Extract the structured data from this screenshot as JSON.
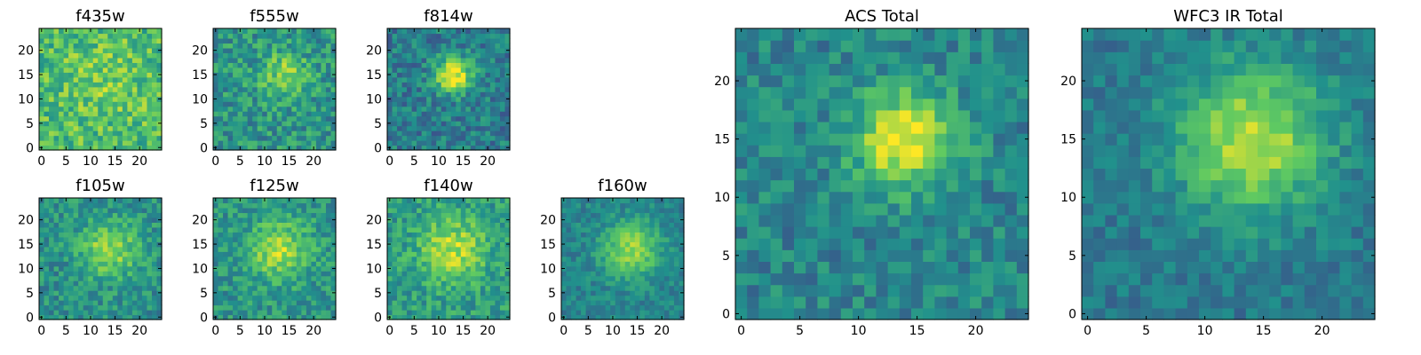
{
  "figure": {
    "colormap": "viridis",
    "colormap_stops": [
      "#440154",
      "#3b528b",
      "#21918c",
      "#5ec962",
      "#fde725"
    ]
  },
  "chart_data": [
    {
      "type": "heatmap",
      "title": "f435w",
      "grid": [
        25,
        25
      ],
      "xlim": [
        -0.5,
        24.5
      ],
      "ylim": [
        -0.5,
        24.5
      ],
      "xticks": [
        0,
        5,
        10,
        15,
        20
      ],
      "yticks": [
        0,
        5,
        10,
        15,
        20
      ],
      "source_sigma": 6,
      "source_amp": 0.1,
      "background": 0.68,
      "noise": 0.38,
      "seed": 11,
      "source_center": [
        13,
        14
      ]
    },
    {
      "type": "heatmap",
      "title": "f555w",
      "grid": [
        25,
        25
      ],
      "xlim": [
        -0.5,
        24.5
      ],
      "ylim": [
        -0.5,
        24.5
      ],
      "xticks": [
        0,
        5,
        10,
        15,
        20
      ],
      "yticks": [
        0,
        5,
        10,
        15,
        20
      ],
      "source_sigma": 3.5,
      "source_amp": 0.28,
      "background": 0.52,
      "noise": 0.36,
      "seed": 23,
      "source_center": [
        14,
        15
      ]
    },
    {
      "type": "heatmap",
      "title": "f814w",
      "grid": [
        25,
        25
      ],
      "xlim": [
        -0.5,
        24.5
      ],
      "ylim": [
        -0.5,
        24.5
      ],
      "xticks": [
        0,
        5,
        10,
        15,
        20
      ],
      "yticks": [
        0,
        5,
        10,
        15,
        20
      ],
      "source_sigma": 2.6,
      "source_amp": 0.6,
      "background": 0.42,
      "noise": 0.32,
      "seed": 37,
      "source_center": [
        13,
        15
      ]
    },
    {
      "type": "heatmap",
      "title": "f105w",
      "grid": [
        25,
        25
      ],
      "xlim": [
        -0.5,
        24.5
      ],
      "ylim": [
        -0.5,
        24.5
      ],
      "xticks": [
        0,
        5,
        10,
        15,
        20
      ],
      "yticks": [
        0,
        5,
        10,
        15,
        20
      ],
      "source_sigma": 4.0,
      "source_amp": 0.35,
      "background": 0.5,
      "noise": 0.3,
      "seed": 41,
      "source_center": [
        14,
        14
      ]
    },
    {
      "type": "heatmap",
      "title": "f125w",
      "grid": [
        25,
        25
      ],
      "xlim": [
        -0.5,
        24.5
      ],
      "ylim": [
        -0.5,
        24.5
      ],
      "xticks": [
        0,
        5,
        10,
        15,
        20
      ],
      "yticks": [
        0,
        5,
        10,
        15,
        20
      ],
      "source_sigma": 4.2,
      "source_amp": 0.35,
      "background": 0.52,
      "noise": 0.3,
      "seed": 53,
      "source_center": [
        13,
        14
      ]
    },
    {
      "type": "heatmap",
      "title": "f140w",
      "grid": [
        25,
        25
      ],
      "xlim": [
        -0.5,
        24.5
      ],
      "ylim": [
        -0.5,
        24.5
      ],
      "xticks": [
        0,
        5,
        10,
        15,
        20
      ],
      "yticks": [
        0,
        5,
        10,
        15,
        20
      ],
      "source_sigma": 4.5,
      "source_amp": 0.35,
      "background": 0.55,
      "noise": 0.3,
      "seed": 67,
      "source_center": [
        13,
        14
      ]
    },
    {
      "type": "heatmap",
      "title": "f160w",
      "grid": [
        25,
        25
      ],
      "xlim": [
        -0.5,
        24.5
      ],
      "ylim": [
        -0.5,
        24.5
      ],
      "xticks": [
        0,
        5,
        10,
        15,
        20
      ],
      "yticks": [
        0,
        5,
        10,
        15,
        20
      ],
      "source_sigma": 4.0,
      "source_amp": 0.4,
      "background": 0.45,
      "noise": 0.22,
      "seed": 71,
      "source_center": [
        14,
        14
      ]
    },
    {
      "type": "heatmap",
      "title": "ACS Total",
      "grid": [
        25,
        25
      ],
      "xlim": [
        -0.5,
        24.5
      ],
      "ylim": [
        -0.5,
        24.5
      ],
      "xticks": [
        0,
        5,
        10,
        15,
        20
      ],
      "yticks": [
        0,
        5,
        10,
        15,
        20
      ],
      "source_sigma": 3.0,
      "source_amp": 0.55,
      "background": 0.45,
      "noise": 0.28,
      "seed": 83,
      "source_center": [
        14,
        15
      ]
    },
    {
      "type": "heatmap",
      "title": "WFC3 IR Total",
      "grid": [
        25,
        25
      ],
      "xlim": [
        -0.5,
        24.5
      ],
      "ylim": [
        -0.5,
        24.5
      ],
      "xticks": [
        0,
        5,
        10,
        15,
        20
      ],
      "yticks": [
        0,
        5,
        10,
        15,
        20
      ],
      "source_sigma": 4.5,
      "source_amp": 0.5,
      "background": 0.4,
      "noise": 0.2,
      "seed": 97,
      "source_center": [
        14,
        15
      ]
    }
  ]
}
